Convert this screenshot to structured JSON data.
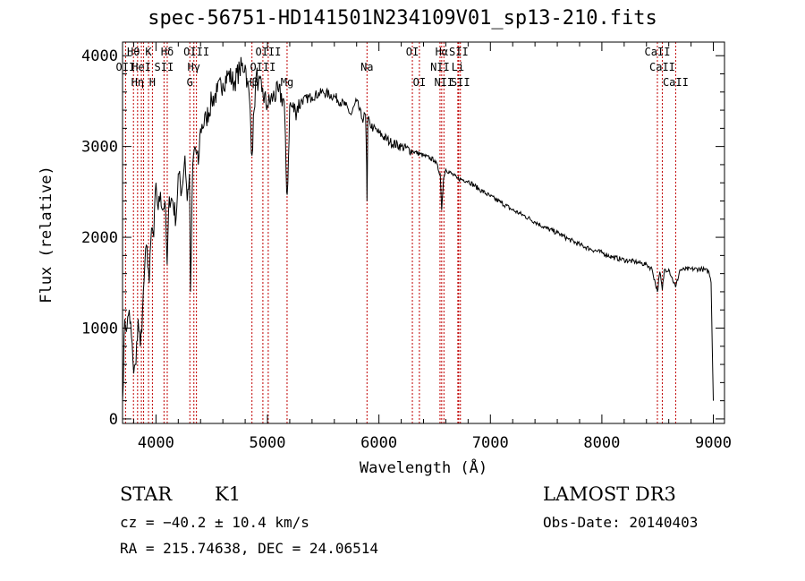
{
  "title": "spec-56751-HD141501N234109V01_sp13-210.fits",
  "info": {
    "class": "STAR",
    "subclass": "K1",
    "survey": "LAMOST DR3",
    "cz": "cz = −40.2 ± 10.4 km/s",
    "obs_date": "Obs-Date: 20140403",
    "radec": "RA = 215.74638, DEC =  24.06514"
  },
  "chart_data": {
    "type": "line",
    "title": "spec-56751-HD141501N234109V01_sp13-210.fits",
    "xlabel": "Wavelength (Å)",
    "ylabel": "Flux (relative)",
    "xlim": [
      3700,
      9100
    ],
    "ylim": [
      -50,
      4150
    ],
    "xticks": [
      4000,
      5000,
      6000,
      7000,
      8000,
      9000
    ],
    "yticks": [
      0,
      1000,
      2000,
      3000,
      4000
    ],
    "series": [
      {
        "name": "flux",
        "x": [
          3700,
          3720,
          3740,
          3760,
          3780,
          3800,
          3820,
          3840,
          3860,
          3880,
          3900,
          3920,
          3940,
          3960,
          3980,
          4000,
          4020,
          4040,
          4060,
          4080,
          4100,
          4120,
          4150,
          4180,
          4200,
          4230,
          4260,
          4280,
          4300,
          4310,
          4330,
          4350,
          4380,
          4400,
          4450,
          4500,
          4550,
          4600,
          4650,
          4700,
          4750,
          4800,
          4820,
          4840,
          4861,
          4880,
          4900,
          4920,
          4950,
          5000,
          5050,
          5100,
          5150,
          5172,
          5183,
          5200,
          5250,
          5300,
          5400,
          5500,
          5600,
          5700,
          5750,
          5800,
          5850,
          5880,
          5890,
          5893,
          5896,
          5900,
          5920,
          5950,
          6000,
          6100,
          6200,
          6300,
          6400,
          6500,
          6550,
          6563,
          6580,
          6600,
          6700,
          6800,
          6900,
          7000,
          7100,
          7200,
          7300,
          7400,
          7500,
          7600,
          7700,
          7800,
          7900,
          8000,
          8100,
          8200,
          8300,
          8400,
          8450,
          8498,
          8520,
          8542,
          8560,
          8600,
          8662,
          8700,
          8800,
          8900,
          8960,
          8980,
          8990,
          9000
        ],
        "y": [
          200,
          1100,
          1000,
          1200,
          900,
          500,
          600,
          1100,
          800,
          1200,
          1700,
          1900,
          1500,
          2100,
          2000,
          2600,
          2300,
          2500,
          2300,
          2400,
          1700,
          2450,
          2400,
          2200,
          2700,
          2500,
          2900,
          2400,
          2700,
          1400,
          2800,
          3000,
          2800,
          3200,
          3300,
          3500,
          3600,
          3700,
          3800,
          3700,
          3850,
          3900,
          3700,
          3500,
          2900,
          3400,
          3800,
          3700,
          3600,
          3450,
          3550,
          3600,
          3500,
          2500,
          2600,
          3450,
          3400,
          3500,
          3550,
          3600,
          3550,
          3450,
          3350,
          3500,
          3300,
          3350,
          2800,
          2400,
          2700,
          3300,
          3250,
          3200,
          3150,
          3050,
          3000,
          2950,
          2900,
          2850,
          2700,
          2300,
          2650,
          2750,
          2650,
          2620,
          2530,
          2450,
          2380,
          2300,
          2240,
          2170,
          2100,
          2050,
          1980,
          1920,
          1870,
          1830,
          1780,
          1750,
          1730,
          1700,
          1650,
          1400,
          1620,
          1420,
          1640,
          1650,
          1450,
          1640,
          1650,
          1650,
          1620,
          1500,
          800,
          200
        ]
      }
    ],
    "lines": [
      {
        "wave": 3727,
        "labels": [
          "OII"
        ],
        "row": [
          1
        ]
      },
      {
        "wave": 3798,
        "labels": [
          "Hθ"
        ],
        "row": [
          0
        ]
      },
      {
        "wave": 3835,
        "labels": [
          "Hη"
        ],
        "row": [
          2
        ]
      },
      {
        "wave": 3869,
        "labels": [
          "HeI"
        ],
        "row": [
          1
        ]
      },
      {
        "wave": 3889,
        "labels": [],
        "row": []
      },
      {
        "wave": 3933,
        "labels": [
          "K"
        ],
        "row": [
          0
        ]
      },
      {
        "wave": 3968,
        "labels": [
          "H"
        ],
        "row": [
          2
        ]
      },
      {
        "wave": 4072,
        "labels": [
          "SII"
        ],
        "row": [
          1
        ]
      },
      {
        "wave": 4101,
        "labels": [
          "Hδ"
        ],
        "row": [
          0
        ]
      },
      {
        "wave": 4304,
        "labels": [
          "G"
        ],
        "row": [
          2
        ]
      },
      {
        "wave": 4340,
        "labels": [
          "Hγ"
        ],
        "row": [
          1
        ]
      },
      {
        "wave": 4363,
        "labels": [
          "OIII"
        ],
        "row": [
          0
        ]
      },
      {
        "wave": 4861,
        "labels": [
          "Hβ"
        ],
        "row": [
          2
        ]
      },
      {
        "wave": 4959,
        "labels": [
          "OIII"
        ],
        "row": [
          1
        ]
      },
      {
        "wave": 5007,
        "labels": [
          "OIII"
        ],
        "row": [
          0
        ]
      },
      {
        "wave": 5176,
        "labels": [
          "Mg"
        ],
        "row": [
          2
        ]
      },
      {
        "wave": 5893,
        "labels": [
          "Na"
        ],
        "row": [
          1
        ]
      },
      {
        "wave": 6300,
        "labels": [
          "OI"
        ],
        "row": [
          0
        ]
      },
      {
        "wave": 6363,
        "labels": [
          "OI"
        ],
        "row": [
          2
        ]
      },
      {
        "wave": 6548,
        "labels": [
          "NII"
        ],
        "row": [
          1
        ]
      },
      {
        "wave": 6563,
        "labels": [
          "Hα"
        ],
        "row": [
          0
        ]
      },
      {
        "wave": 6583,
        "labels": [
          "NII"
        ],
        "row": [
          2
        ]
      },
      {
        "wave": 6708,
        "labels": [
          "Li"
        ],
        "row": [
          1
        ]
      },
      {
        "wave": 6716,
        "labels": [
          "SII"
        ],
        "row": [
          0
        ]
      },
      {
        "wave": 6731,
        "labels": [
          "SII"
        ],
        "row": [
          2
        ]
      },
      {
        "wave": 8498,
        "labels": [
          "CaII"
        ],
        "row": [
          0
        ]
      },
      {
        "wave": 8542,
        "labels": [
          "CaII"
        ],
        "row": [
          1
        ]
      },
      {
        "wave": 8662,
        "labels": [
          "CaII"
        ],
        "row": [
          2
        ]
      }
    ]
  }
}
